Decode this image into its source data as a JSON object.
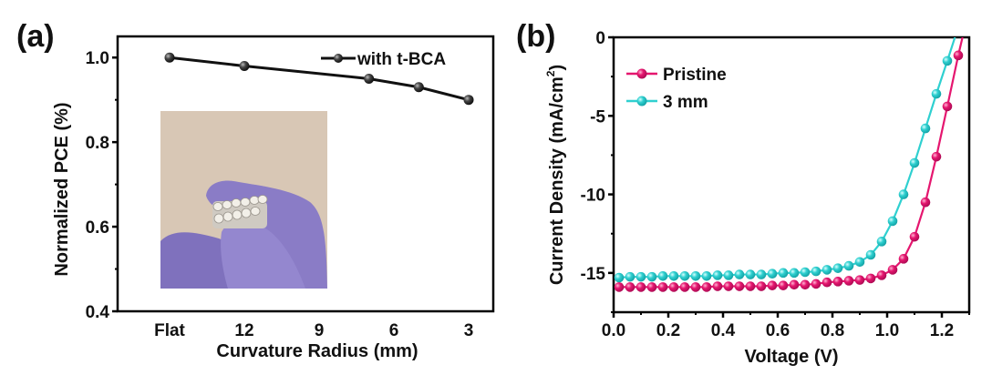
{
  "chart_data": [
    {
      "panel_label": "(a)",
      "type": "line",
      "title": "",
      "xlabel": "Curvature Radius (mm)",
      "ylabel": "Normalized PCE (%)",
      "x_tick_labels": [
        "Flat",
        "12",
        "9",
        "6",
        "3"
      ],
      "x_tick_radius": [
        null,
        12,
        9,
        6,
        3
      ],
      "ylim": [
        0.4,
        1.05
      ],
      "y_ticks": [
        0.4,
        0.6,
        0.8,
        1.0
      ],
      "y_tick_labels": [
        "0.4",
        "0.6",
        "0.8",
        "1.0"
      ],
      "y_minor_ticks": [
        0.5,
        0.7,
        0.9
      ],
      "grid": false,
      "legend_position": "top-right",
      "series": [
        {
          "name": "with t-BCA",
          "color": "#111111",
          "points": [
            {
              "radius_label": "Flat",
              "radius": null,
              "value": 1.0
            },
            {
              "radius_label": "12",
              "radius": 12,
              "value": 0.98
            },
            {
              "radius_label": "7",
              "radius": 7,
              "value": 0.95
            },
            {
              "radius_label": "5",
              "radius": 5,
              "value": 0.93
            },
            {
              "radius_label": "3",
              "radius": 3,
              "value": 0.9
            }
          ]
        }
      ],
      "inset": {
        "description": "photo of flexible solar cell bent between gloved fingers",
        "background_color": "#d8c7b5",
        "glove_color": "#8a7cc6"
      }
    },
    {
      "panel_label": "(b)",
      "type": "line",
      "title": "",
      "xlabel": "Voltage (V)",
      "ylabel": "Current Density (mA/cm",
      "ylabel_superscript": "2",
      "ylabel_suffix": ")",
      "xlim": [
        0,
        1.3
      ],
      "ylim": [
        -17.5,
        0
      ],
      "x_ticks": [
        0,
        0.2,
        0.4,
        0.6,
        0.8,
        1.0,
        1.2
      ],
      "x_tick_labels": [
        "0.0",
        "0.2",
        "0.4",
        "0.6",
        "0.8",
        "1.0",
        "1.2"
      ],
      "x_minor_ticks": [
        0.1,
        0.3,
        0.5,
        0.7,
        0.9,
        1.1,
        1.3
      ],
      "y_ticks": [
        0,
        -5,
        -10,
        -15
      ],
      "y_tick_labels": [
        "0",
        "-5",
        "-10",
        "-15"
      ],
      "y_minor_ticks": [
        -2.5,
        -7.5,
        -12.5,
        -17.5
      ],
      "grid": false,
      "legend_position": "top-left",
      "series": [
        {
          "name": "Pristine",
          "color": "#e5166f",
          "x": [
            0.02,
            0.06,
            0.1,
            0.14,
            0.18,
            0.22,
            0.26,
            0.3,
            0.34,
            0.38,
            0.42,
            0.46,
            0.5,
            0.54,
            0.58,
            0.62,
            0.66,
            0.7,
            0.74,
            0.78,
            0.82,
            0.86,
            0.9,
            0.94,
            0.98,
            1.02,
            1.06,
            1.1,
            1.14,
            1.18,
            1.22,
            1.26
          ],
          "y": [
            -15.9,
            -15.9,
            -15.9,
            -15.9,
            -15.9,
            -15.9,
            -15.9,
            -15.9,
            -15.9,
            -15.85,
            -15.85,
            -15.85,
            -15.85,
            -15.85,
            -15.8,
            -15.8,
            -15.75,
            -15.75,
            -15.7,
            -15.6,
            -15.55,
            -15.5,
            -15.45,
            -15.35,
            -15.15,
            -14.8,
            -14.1,
            -12.7,
            -10.5,
            -7.6,
            -4.4,
            -1.15
          ],
          "voc": 1.277
        },
        {
          "name": "3 mm",
          "color": "#2fd0d0",
          "x": [
            0.02,
            0.06,
            0.1,
            0.14,
            0.18,
            0.22,
            0.26,
            0.3,
            0.34,
            0.38,
            0.42,
            0.46,
            0.5,
            0.54,
            0.58,
            0.62,
            0.66,
            0.7,
            0.74,
            0.78,
            0.82,
            0.86,
            0.9,
            0.94,
            0.98,
            1.02,
            1.06,
            1.1,
            1.14,
            1.18,
            1.22
          ],
          "y": [
            -15.3,
            -15.25,
            -15.25,
            -15.25,
            -15.2,
            -15.2,
            -15.2,
            -15.2,
            -15.2,
            -15.15,
            -15.15,
            -15.1,
            -15.1,
            -15.1,
            -15.05,
            -15.0,
            -15.0,
            -14.95,
            -14.9,
            -14.8,
            -14.7,
            -14.55,
            -14.3,
            -13.85,
            -13.0,
            -11.7,
            -10.0,
            -8.0,
            -5.8,
            -3.6,
            -1.5
          ],
          "voc": 1.25
        }
      ]
    }
  ]
}
